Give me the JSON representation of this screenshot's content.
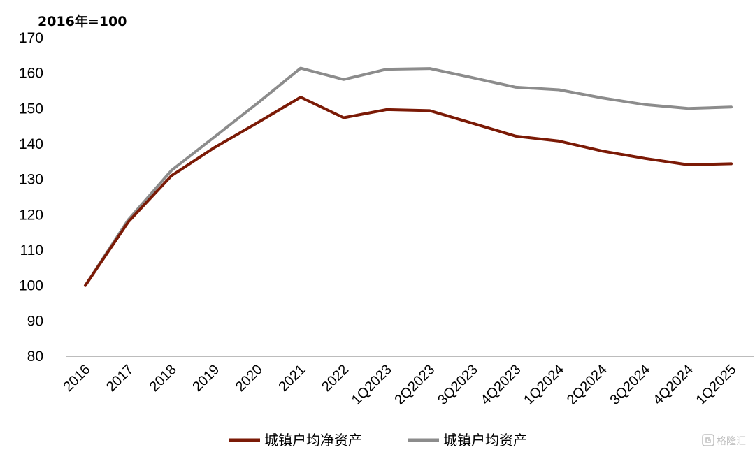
{
  "chart_data": {
    "type": "line",
    "unit_label": "2016年=100",
    "categories": [
      "2016",
      "2017",
      "2018",
      "2019",
      "2020",
      "2021",
      "2022",
      "1Q2023",
      "2Q2023",
      "3Q2023",
      "4Q2023",
      "1Q2024",
      "2Q2024",
      "3Q2024",
      "4Q2024",
      "1Q2025"
    ],
    "series": [
      {
        "name": "城镇户均净资产",
        "color": "#7b1a06",
        "values": [
          100,
          118,
          131,
          139,
          146,
          153.2,
          147.4,
          149.7,
          149.4,
          145.8,
          142.2,
          140.8,
          138.0,
          135.9,
          134.1,
          134.4
        ]
      },
      {
        "name": "城镇户均资产",
        "color": "#8c8c8c",
        "values": [
          100,
          118.6,
          132.5,
          142,
          151.5,
          161.4,
          158.2,
          161.1,
          161.3,
          158.7,
          156.0,
          155.3,
          153.0,
          151.1,
          150.0,
          150.4
        ]
      }
    ],
    "ylim": [
      80,
      170
    ],
    "yticks": [
      "80",
      "90",
      "100",
      "110",
      "120",
      "130",
      "140",
      "150",
      "160",
      "170"
    ],
    "grid": false,
    "legend": "bottom-center"
  },
  "watermark": {
    "text": "格隆汇",
    "icon": "gelonghui-logo-icon"
  }
}
